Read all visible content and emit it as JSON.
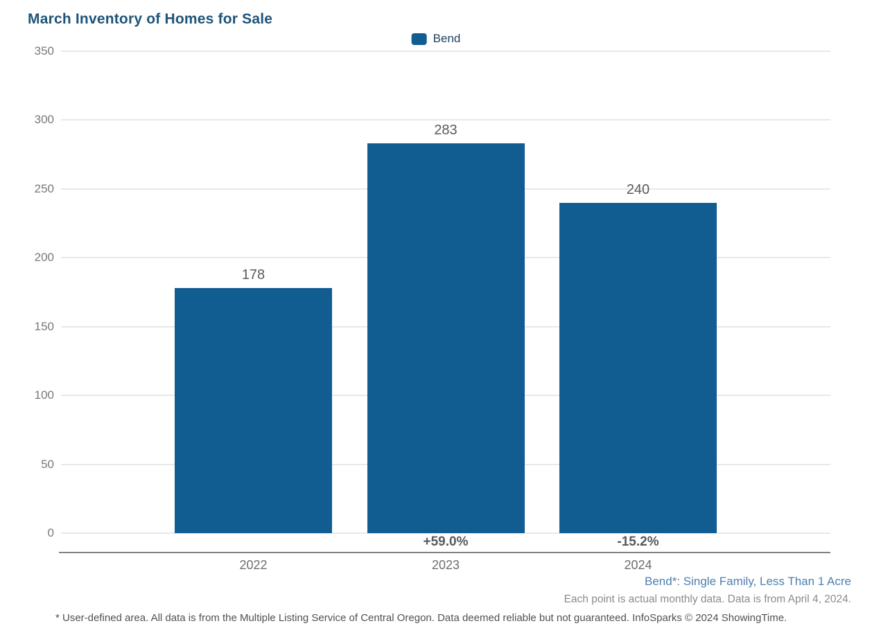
{
  "title": "March Inventory of Homes for Sale",
  "legend": {
    "label": "Bend",
    "swatch_color": "#115d92"
  },
  "colors": {
    "bar": "#115d92",
    "title_text": "#1e5479",
    "footnote_blue": "#4e7fae",
    "gridline": "#e8e8e8",
    "axis_line": "#808285"
  },
  "chart_data": {
    "type": "bar",
    "title": "March Inventory of Homes for Sale",
    "categories": [
      "2022",
      "2023",
      "2024"
    ],
    "series": [
      {
        "name": "Bend",
        "values": [
          178,
          283,
          240
        ]
      }
    ],
    "value_labels": [
      "178",
      "283",
      "240"
    ],
    "pct_change_labels": [
      "",
      "+59.0%",
      "-15.2%"
    ],
    "yticks": [
      0,
      50,
      100,
      150,
      200,
      250,
      300,
      350
    ],
    "ylim": [
      0,
      350
    ],
    "xlabel": "",
    "ylabel": "",
    "grid": true,
    "legend_position": "top-center",
    "bar_color": "#115d92"
  },
  "footnotes": {
    "series_definition": "Bend*: Single Family, Less Than 1 Acre",
    "data_note": "Each point is actual monthly data. Data is from April 4, 2024.",
    "disclaimer": "* User-defined area. All data is from the Multiple Listing Service of Central Oregon. Data deemed reliable but not guaranteed. InfoSparks © 2024 ShowingTime."
  }
}
